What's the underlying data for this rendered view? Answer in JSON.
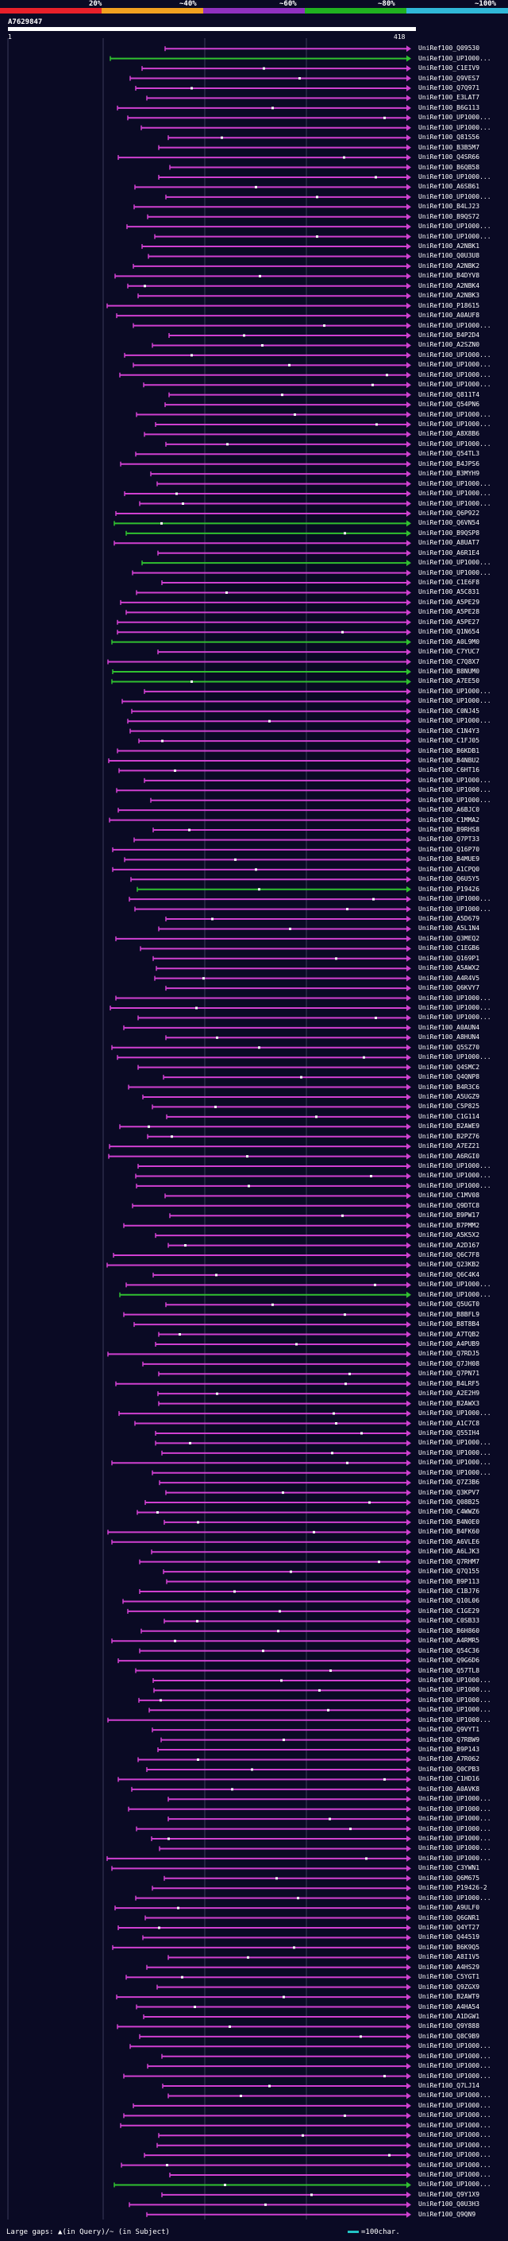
{
  "header": {
    "scale_labels": [
      "20%",
      "~40%",
      "~60%",
      "~80%",
      "~100%"
    ],
    "scale_colors": [
      "#e8202a",
      "#f0a020",
      "#9030c0",
      "#20b020",
      "#30b8d8"
    ],
    "query_id": "A7629847",
    "range_start": "1",
    "range_end": "418"
  },
  "colors": {
    "magenta": "#d040d0",
    "green": "#30c030",
    "black_segment": "#1a1a1a",
    "grid": "#3a3a5a"
  },
  "hits": [
    "UniRef100_Q09530",
    "UniRef100_UP1000...",
    "UniRef100_C1EIV9",
    "UniRef100_Q9VES7",
    "UniRef100_Q7Q971",
    "UniRef100_E3LAT7",
    "UniRef100_B6G113",
    "UniRef100_UP1000...",
    "UniRef100_UP1000...",
    "UniRef100_Q81S56",
    "UniRef100_B3B5M7",
    "UniRef100_Q4SR66",
    "UniRef100_B6QB58",
    "UniRef100_UP1000...",
    "UniRef100_A6SB61",
    "UniRef100_UP1000...",
    "UniRef100_B4LJ23",
    "UniRef100_B9QS72",
    "UniRef100_UP1000...",
    "UniRef100_UP1000...",
    "UniRef100_A2NBK1",
    "UniRef100_Q0U3U8",
    "UniRef100_A2NBK2",
    "UniRef100_B4DYV8",
    "UniRef100_A2NBK4",
    "UniRef100_A2NBK3",
    "UniRef100_P18615",
    "UniRef100_A0AUF8",
    "UniRef100_UP1000...",
    "UniRef100_B4P2D4",
    "UniRef100_A2SZN0",
    "UniRef100_UP1000...",
    "UniRef100_UP1000...",
    "UniRef100_UP1000...",
    "UniRef100_UP1000...",
    "UniRef100_Q811T4",
    "UniRef100_Q54PN6",
    "UniRef100_UP1000...",
    "UniRef100_UP1000...",
    "UniRef100_A8X8B6",
    "UniRef100_UP1000...",
    "UniRef100_Q54TL3",
    "UniRef100_B4JPS6",
    "UniRef100_B3MYH9",
    "UniRef100_UP1000...",
    "UniRef100_UP1000...",
    "UniRef100_UP1000...",
    "UniRef100_Q6P922",
    "UniRef100_Q6VN54",
    "UniRef100_B9QSP8",
    "UniRef100_A8UAT7",
    "UniRef100_A6R1E4",
    "UniRef100_UP1000...",
    "UniRef100_UP1000...",
    "UniRef100_C1E6F8",
    "UniRef100_A5C831",
    "UniRef100_A5PE29",
    "UniRef100_A5PE28",
    "UniRef100_A5PE27",
    "UniRef100_Q1N654",
    "UniRef100_A0L9M0",
    "UniRef100_C7YUC7",
    "UniRef100_C7Q8X7",
    "UniRef100_B8NUM0",
    "UniRef100_A7EE50",
    "UniRef100_UP1000...",
    "UniRef100_UP1000...",
    "UniRef100_C0NJ45",
    "UniRef100_UP1000...",
    "UniRef100_C1N4Y3",
    "UniRef100_C1FJ05",
    "UniRef100_B6KDB1",
    "UniRef100_B4NBU2",
    "UniRef100_C6HT16",
    "UniRef100_UP1000...",
    "UniRef100_UP1000...",
    "UniRef100_UP1000...",
    "UniRef100_A6BJC0",
    "UniRef100_C1MMA2",
    "UniRef100_B9RHS8",
    "UniRef100_Q7PT33",
    "UniRef100_Q16P70",
    "UniRef100_B4MUE9",
    "UniRef100_A1CPQ0",
    "UniRef100_Q6U5Y5",
    "UniRef100_P19426",
    "UniRef100_UP1000...",
    "UniRef100_UP1000...",
    "UniRef100_A5D679",
    "UniRef100_A5L1N4",
    "UniRef100_Q3MEQ2",
    "UniRef100_C1EGB6",
    "UniRef100_Q169P1",
    "UniRef100_A5AWX2",
    "UniRef100_A4R4V5",
    "UniRef100_Q6KVY7",
    "UniRef100_UP1000...",
    "UniRef100_UP1000...",
    "UniRef100_UP1000...",
    "UniRef100_A0AUN4",
    "UniRef100_A8HUN4",
    "UniRef100_Q5SZ70",
    "UniRef100_UP1000...",
    "UniRef100_Q4SMC2",
    "UniRef100_Q4QNP8",
    "UniRef100_B4R3C6",
    "UniRef100_A5UGZ9",
    "UniRef100_C5P825",
    "UniRef100_C1G114",
    "UniRef100_B2AWE9",
    "UniRef100_B2PZ76",
    "UniRef100_A7EZ21",
    "UniRef100_A6RGI0",
    "UniRef100_UP1000...",
    "UniRef100_UP1000...",
    "UniRef100_UP1000...",
    "UniRef100_C1MV08",
    "UniRef100_Q9DTC8",
    "UniRef100_B9PW17",
    "UniRef100_B7PMM2",
    "UniRef100_A5K5X2",
    "UniRef100_A2D167",
    "UniRef100_Q6C7F8",
    "UniRef100_Q23KB2",
    "UniRef100_Q6C4K4",
    "UniRef100_UP1000...",
    "UniRef100_UP1000...",
    "UniRef100_Q5UGT0",
    "UniRef100_B8BFL9",
    "UniRef100_B8T8B4",
    "UniRef100_A7TQB2",
    "UniRef100_A4PUB9",
    "UniRef100_Q7RDJ5",
    "UniRef100_Q7JH08",
    "UniRef100_Q7PN71",
    "UniRef100_B4LRF5",
    "UniRef100_A2E2H9",
    "UniRef100_B2AWX3",
    "UniRef100_UP1000...",
    "UniRef100_A1C7C8",
    "UniRef100_Q55IH4",
    "UniRef100_UP1000...",
    "UniRef100_UP1000...",
    "UniRef100_UP1000...",
    "UniRef100_UP1000...",
    "UniRef100_Q7Z3B6",
    "UniRef100_Q3KPV7",
    "UniRef100_Q08B25",
    "UniRef100_C4WWZ6",
    "UniRef100_B4N0E0",
    "UniRef100_B4FK60",
    "UniRef100_A6VLE6",
    "UniRef100_A6LJK3",
    "UniRef100_Q7RHM7",
    "UniRef100_Q7Q155",
    "UniRef100_B9P113",
    "UniRef100_C1BJ76",
    "UniRef100_Q10L06",
    "UniRef100_C1GE29",
    "UniRef100_C0SB33",
    "UniRef100_B6H860",
    "UniRef100_A4RMR5",
    "UniRef100_Q54C36",
    "UniRef100_Q9G6D6",
    "UniRef100_Q57TL8",
    "UniRef100_UP1000...",
    "UniRef100_UP1000...",
    "UniRef100_UP1000...",
    "UniRef100_UP1000...",
    "UniRef100_UP1000...",
    "UniRef100_Q9VYT1",
    "UniRef100_Q7RBW9",
    "UniRef100_B9P143",
    "UniRef100_A7R062",
    "UniRef100_Q0CPB3",
    "UniRef100_C1HD16",
    "UniRef100_A0AVK8",
    "UniRef100_UP1000...",
    "UniRef100_UP1000...",
    "UniRef100_UP1000...",
    "UniRef100_UP1000...",
    "UniRef100_UP1000...",
    "UniRef100_UP1000...",
    "UniRef100_UP1000...",
    "UniRef100_C3YWN1",
    "UniRef100_Q6M675",
    "UniRef100_P19426-2",
    "UniRef100_UP1000...",
    "UniRef100_A9ULF0",
    "UniRef100_Q6GNR1",
    "UniRef100_Q4YT27",
    "UniRef100_Q44519",
    "UniRef100_B6K9Q5",
    "UniRef100_A8I1V5",
    "UniRef100_A4HS29",
    "UniRef100_C5YGT1",
    "UniRef100_Q9ZGX9",
    "UniRef100_B2AWT9",
    "UniRef100_A4HA54",
    "UniRef100_A1DGW1",
    "UniRef100_Q9Y888",
    "UniRef100_Q8C9B9",
    "UniRef100_UP1000...",
    "UniRef100_UP1000...",
    "UniRef100_UP1000...",
    "UniRef100_UP1000...",
    "UniRef100_Q7LJ14",
    "UniRef100_UP1000...",
    "UniRef100_UP1000...",
    "UniRef100_UP1000...",
    "UniRef100_UP1000...",
    "UniRef100_UP1000...",
    "UniRef100_UP1000...",
    "UniRef100_UP1000...",
    "UniRef100_UP1000...",
    "UniRef100_UP1000...",
    "UniRef100_UP1000...",
    "UniRef100_Q9Y1X9",
    "UniRef100_Q0U3H3",
    "UniRef100_Q9QN9"
  ],
  "legend": {
    "left": "Large gaps: ▲(in Query)/~ (in Subject)",
    "right": "=100char."
  }
}
